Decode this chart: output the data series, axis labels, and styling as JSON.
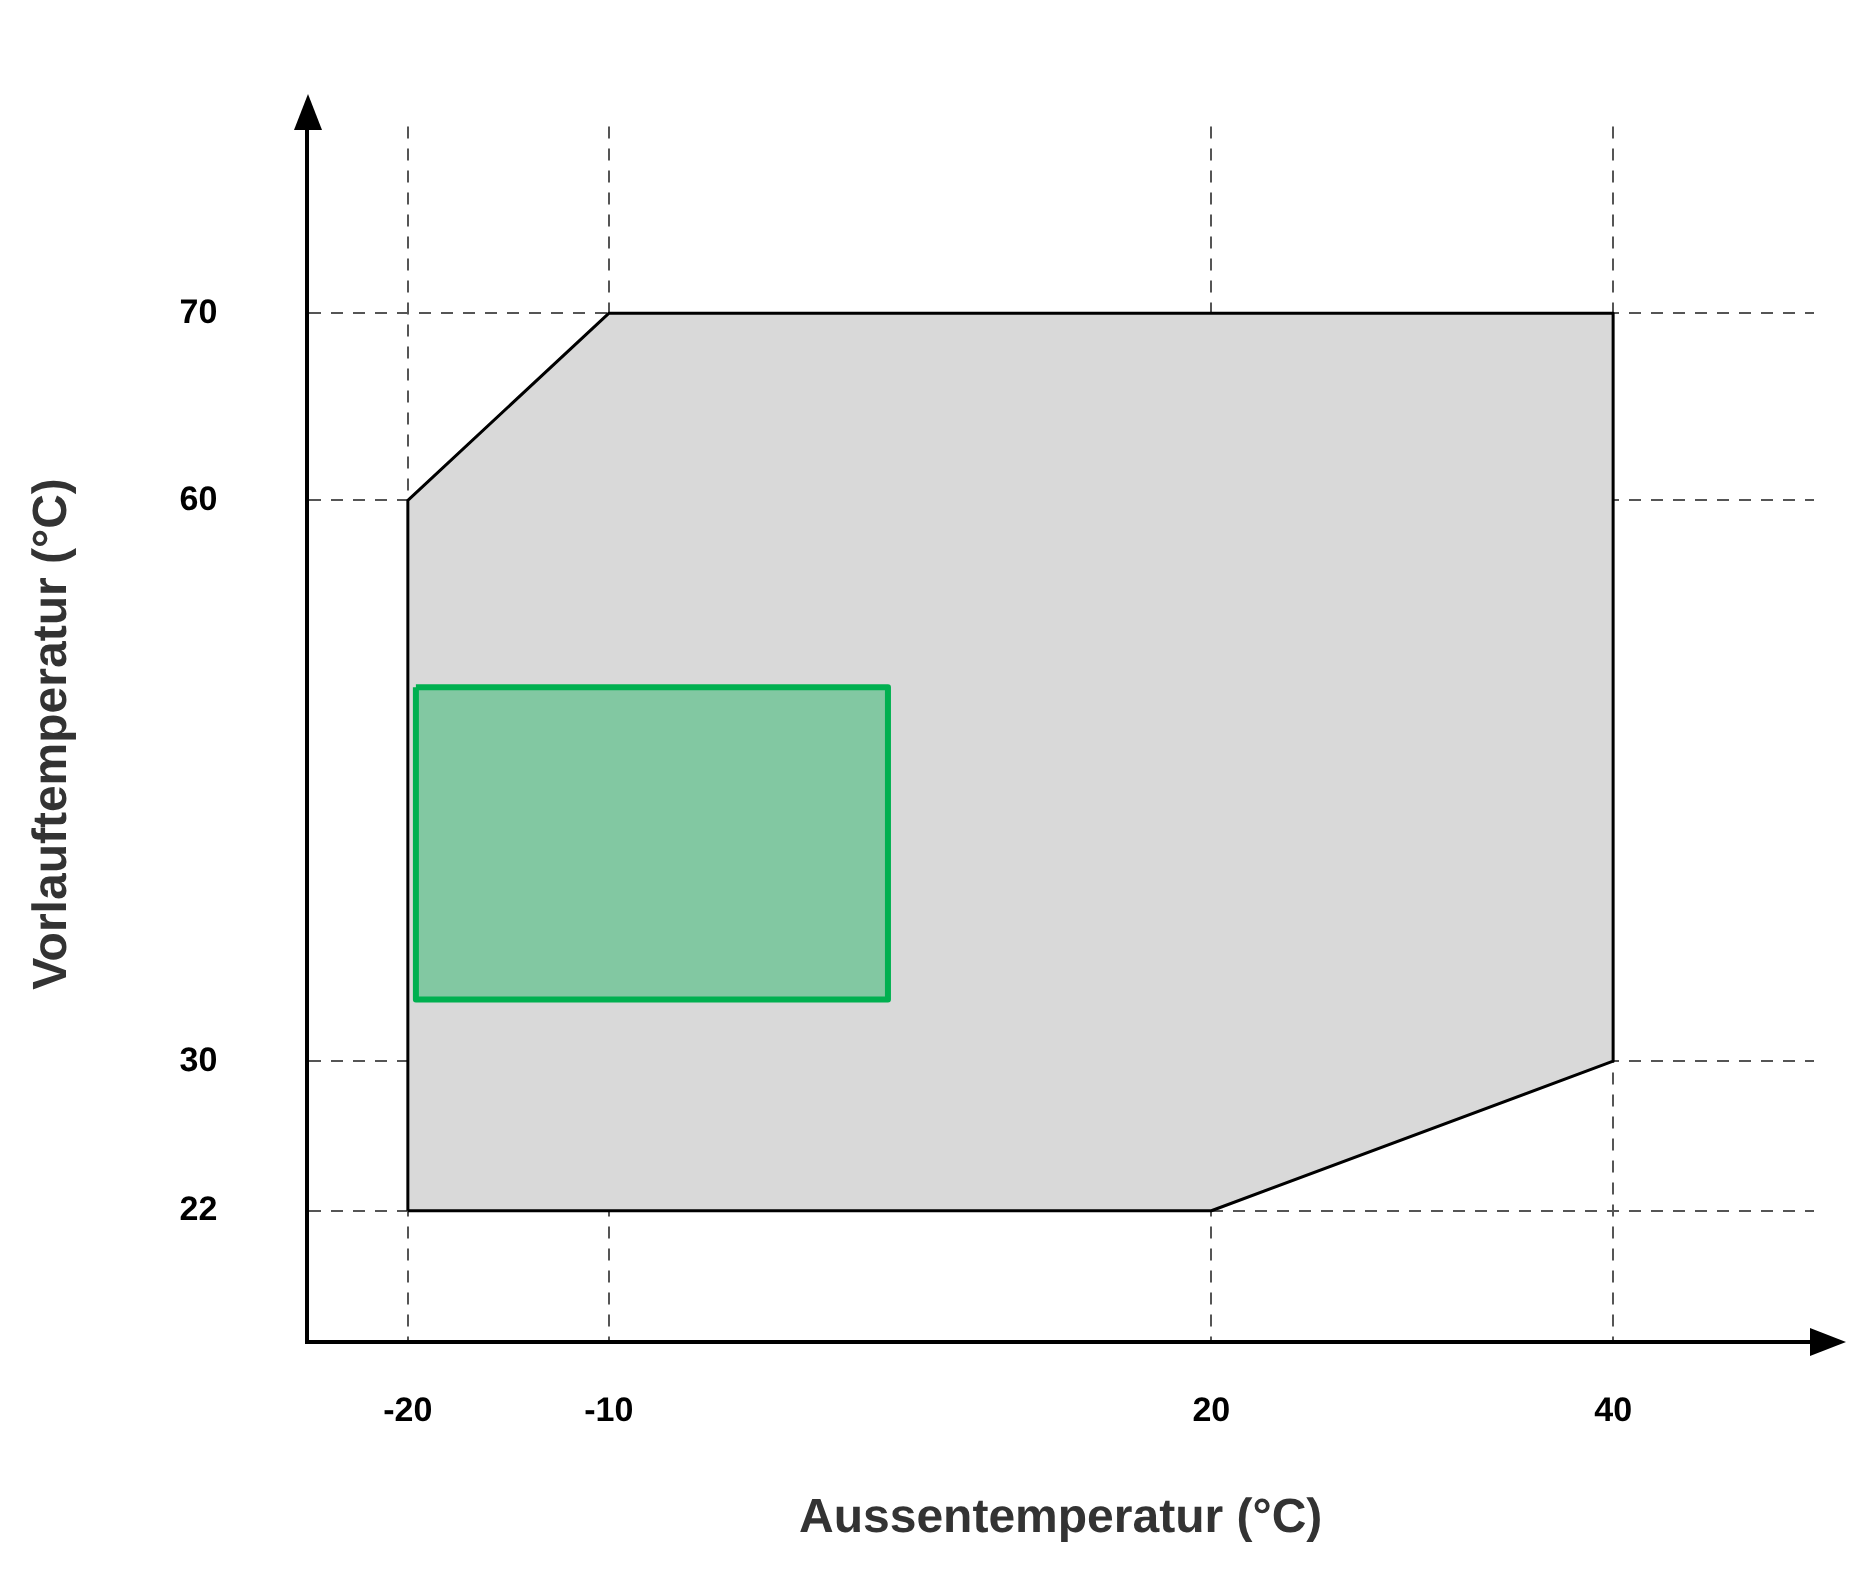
{
  "chart_data": {
    "type": "area",
    "xlabel": "Aussentemperatur (°C)",
    "ylabel": "Vorlauftemperatur (°C)",
    "xlim": [
      -25,
      50
    ],
    "ylim": [
      15,
      80
    ],
    "xticks": [
      -20,
      -10,
      20,
      40
    ],
    "yticks": [
      22,
      30,
      60,
      70
    ],
    "grid": true,
    "marker": "none",
    "series": [
      {
        "color": "#d9d9d9",
        "x": [
          -20,
          -20,
          -10,
          40,
          40,
          20,
          -20
        ],
        "values": [
          22,
          60,
          70,
          70,
          30,
          22,
          22
        ]
      },
      {
        "color": "#00b050",
        "x": [
          -19.6,
          3.9,
          3.9,
          -19.6,
          -19.6
        ],
        "values": [
          50,
          50,
          33.3,
          33.3,
          50
        ]
      }
    ]
  }
}
